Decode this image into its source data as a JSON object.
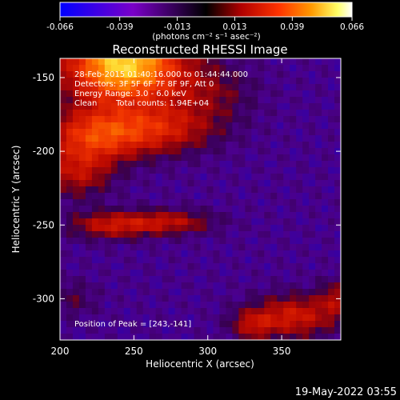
{
  "figure": {
    "title": "Reconstructed RHESSI Image",
    "footer_timestamp": "19-May-2022 03:55"
  },
  "colorbar": {
    "tick_labels": [
      "-0.066",
      "-0.039",
      "-0.013",
      "0.013",
      "0.039",
      "0.066"
    ],
    "tick_values": [
      -0.066,
      -0.039,
      -0.013,
      0.013,
      0.039,
      0.066
    ],
    "range": [
      -0.066,
      0.066
    ],
    "units_label": "(photons cm⁻² s⁻¹ asec⁻²)",
    "colors": [
      "#0000ff",
      "#7a00c8",
      "#000000",
      "#b00000",
      "#ff3300",
      "#ff9900",
      "#ffff66",
      "#ffffff"
    ]
  },
  "info": {
    "time_range": "28-Feb-2015 01:40:16.000 to 01:44:44.000",
    "detectors": "Detectors: 3F 5F 6F 7F 8F 9F, Att 0",
    "energy": "Energy Range: 3.0 - 6.0 keV",
    "method": "Clean",
    "counts": "Total counts: 1.94E+04",
    "peak": "Position of Peak = [243,-141]"
  },
  "chart_data": {
    "type": "heatmap",
    "title": "Reconstructed RHESSI Image",
    "xlabel": "Heliocentric X (arcsec)",
    "ylabel": "Heliocentric Y (arcsec)",
    "xlim": [
      200,
      390
    ],
    "ylim": [
      -328,
      -137
    ],
    "xticks": [
      200,
      250,
      300,
      350
    ],
    "yticks": [
      -150,
      -200,
      -250,
      -300
    ],
    "peak_position": [
      243,
      -141
    ],
    "zlim": [
      -0.066,
      0.066
    ],
    "grid": false
  }
}
